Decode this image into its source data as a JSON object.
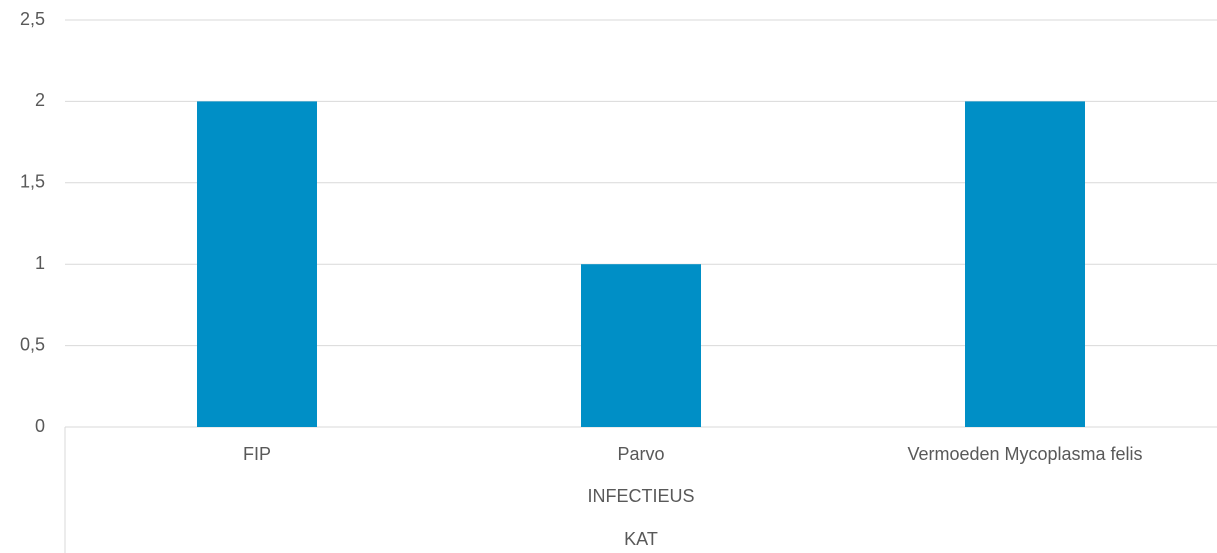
{
  "chart_data": {
    "type": "bar",
    "categories": [
      "FIP",
      "Parvo",
      "Vermoeden Mycoplasma felis"
    ],
    "x_group_labels": [
      "INFECTIEUS",
      "KAT"
    ],
    "values": [
      2,
      1,
      2
    ],
    "color": "#008fc6",
    "ylim": [
      0,
      2.5
    ],
    "yticks": [
      0,
      {
        "value": 0.5,
        "label": "0,5"
      },
      1,
      {
        "value": 1.5,
        "label": "1,5"
      },
      2,
      {
        "value": 2.5,
        "label": "2,5"
      }
    ],
    "grid": true
  }
}
